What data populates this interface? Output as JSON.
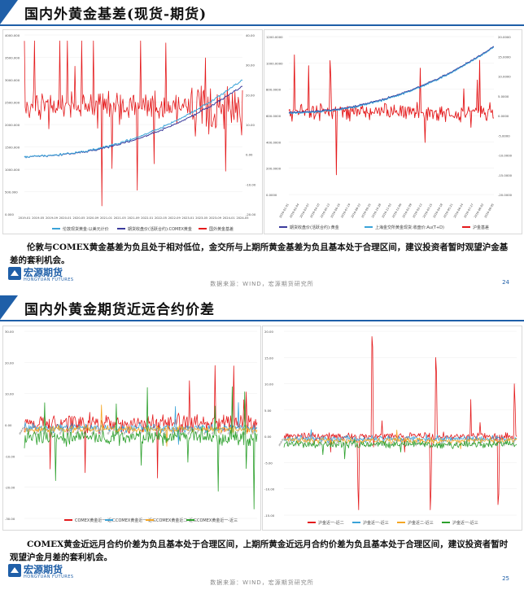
{
  "slides": [
    {
      "title": "国内外黄金基差(现货-期货)",
      "comment": "伦敦与COMEX黄金基差为负且处于相对低位，金交所与上期所黄金基差为负且基本处于合理区间，建议投资者暂时观望沪金基差的套利机会。",
      "logo": {
        "cn": "宏源期货",
        "en": "HONGYUAN FUTURES"
      },
      "source": "数据来源：WIND，宏源期货研究所",
      "page": "24"
    },
    {
      "title": "国内外黄金期货近远合约价差",
      "comment": "COMEX黄金近远月合约价差为负且基本处于合理区间，上期所黄金近远月合约价差为负且基本处于合理区间，建议投资者暂时观望沪金月差的套利机会。",
      "logo": {
        "cn": "宏源期货",
        "en": "HONGYUAN FUTURES"
      },
      "source": "数据来源：WIND，宏源期货研究所",
      "page": "25"
    }
  ],
  "chart_data": [
    {
      "type": "line",
      "id": "london-comex-basis",
      "x_start": "2019-01",
      "x_end": "2024-05",
      "left_axis_ticks": [
        "0.000",
        "500.000",
        "1000.000",
        "1500.000",
        "2000.000",
        "2500.000",
        "3000.000",
        "3500.000",
        "4000.000"
      ],
      "right_axis_ticks": [
        "-20.00",
        "-10.00",
        "0.00",
        "10.00",
        "20.00",
        "30.00",
        "40.00"
      ],
      "x_ticks": [
        "2019-01",
        "2019-05",
        "2019-09",
        "2020-01",
        "2020-05",
        "2020-09",
        "2021-01",
        "2021-05",
        "2021-09",
        "2022-01",
        "2022-05",
        "2022-09",
        "2023-01",
        "2023-05",
        "2023-09",
        "2024-01",
        "2024-05"
      ],
      "ylim_left": [
        0,
        4000
      ],
      "ylim_right": [
        -20,
        40
      ],
      "series": [
        {
          "name": "伦敦现货黄金:以美元计价",
          "color": "#3aa3d8",
          "axis": "left",
          "start": 1290,
          "end": 3000
        },
        {
          "name": "期货收盘价(活跃合约):COMEX黄金",
          "color": "#3b3b9c",
          "axis": "left",
          "start": 1300,
          "end": 3020
        },
        {
          "name": "国外黄金基差",
          "color": "#e41a1c",
          "axis": "right",
          "mean": -1,
          "spread": 8
        }
      ]
    },
    {
      "type": "line",
      "id": "sge-shfe-basis",
      "left_axis_ticks": [
        "0.0000",
        "200.0000",
        "400.0000",
        "600.0000",
        "800.0000",
        "1000.0000",
        "1200.0000"
      ],
      "right_axis_ticks": [
        "-20.0000",
        "-15.0000",
        "-10.0000",
        "-5.0000",
        "0.0000",
        "5.0000",
        "10.0000",
        "15.0000",
        "20.0000"
      ],
      "ylim_left": [
        0,
        1200
      ],
      "ylim_right": [
        -20,
        20
      ],
      "series": [
        {
          "name": "期货收盘价(活跃合约):黄金",
          "color": "#3b3b9c",
          "axis": "left",
          "start": 565,
          "end": 1120
        },
        {
          "name": "上海金交所黄金现货:收盘价:Au(T+D)",
          "color": "#3aa3d8",
          "axis": "left",
          "start": 560,
          "end": 1115
        },
        {
          "name": "沪金基差",
          "color": "#e41a1c",
          "axis": "right",
          "mean": -2,
          "spread": 3
        }
      ]
    },
    {
      "type": "line",
      "id": "comex-spreads",
      "left_axis_ticks": [
        "-30.00",
        "-20.00",
        "-10.00",
        "0.00",
        "10.00",
        "20.00",
        "30.00"
      ],
      "ylim": [
        -30,
        30
      ],
      "series": [
        {
          "name": "COMEX黄金近一-近二",
          "color": "#e41a1c",
          "mean": 0.5,
          "spread": 2.5
        },
        {
          "name": "COMEX黄金近一-近三",
          "color": "#3aa3d8",
          "mean": -1,
          "spread": 1.2
        },
        {
          "name": "COMEX黄金近二-近三",
          "color": "#f5a623",
          "mean": -1.5,
          "spread": 1.0
        },
        {
          "name": "COMEX黄金近一-近三",
          "color": "#2ca02c",
          "mean": -4,
          "spread": 2.2
        }
      ]
    },
    {
      "type": "line",
      "id": "shfe-spreads",
      "left_axis_ticks": [
        "-15.00",
        "-10.00",
        "-5.00",
        "0.00",
        "5.00",
        "10.00",
        "15.00",
        "20.00"
      ],
      "ylim": [
        -15,
        20
      ],
      "series": [
        {
          "name": "沪金近一-近二",
          "color": "#e41a1c",
          "mean": 0,
          "spread": 0.6
        },
        {
          "name": "沪金近一-近三",
          "color": "#3aa3d8",
          "mean": -0.5,
          "spread": 0.5
        },
        {
          "name": "沪金近二-近三",
          "color": "#f5a623",
          "mean": -0.8,
          "spread": 0.5
        },
        {
          "name": "沪金近一-近三",
          "color": "#2ca02c",
          "mean": -1.5,
          "spread": 0.6
        }
      ]
    }
  ],
  "legends": {
    "c1": [
      "伦敦现货黄金:以美元计价",
      "期货收盘价(活跃合约):COMEX黄金",
      "国外黄金基差"
    ],
    "c2": [
      "期货收盘价(活跃合约):黄金",
      "上海金交所黄金现货:收盘价:Au(T+D)",
      "沪金基差"
    ],
    "c3": [
      "COMEX黄金近一-近二",
      "COMEX黄金近一-近三",
      "COMEX黄金近二-近三",
      "COMEX黄金近一-近三"
    ],
    "c4": [
      "沪金近一-近二",
      "沪金近一-近三",
      "沪金近二-近三",
      "沪金近一-近三"
    ]
  },
  "colors": {
    "accent": "#1f5fa8",
    "red": "#e41a1c",
    "blue": "#3aa3d8",
    "navy": "#3b3b9c",
    "orange": "#f5a623",
    "green": "#2ca02c"
  }
}
